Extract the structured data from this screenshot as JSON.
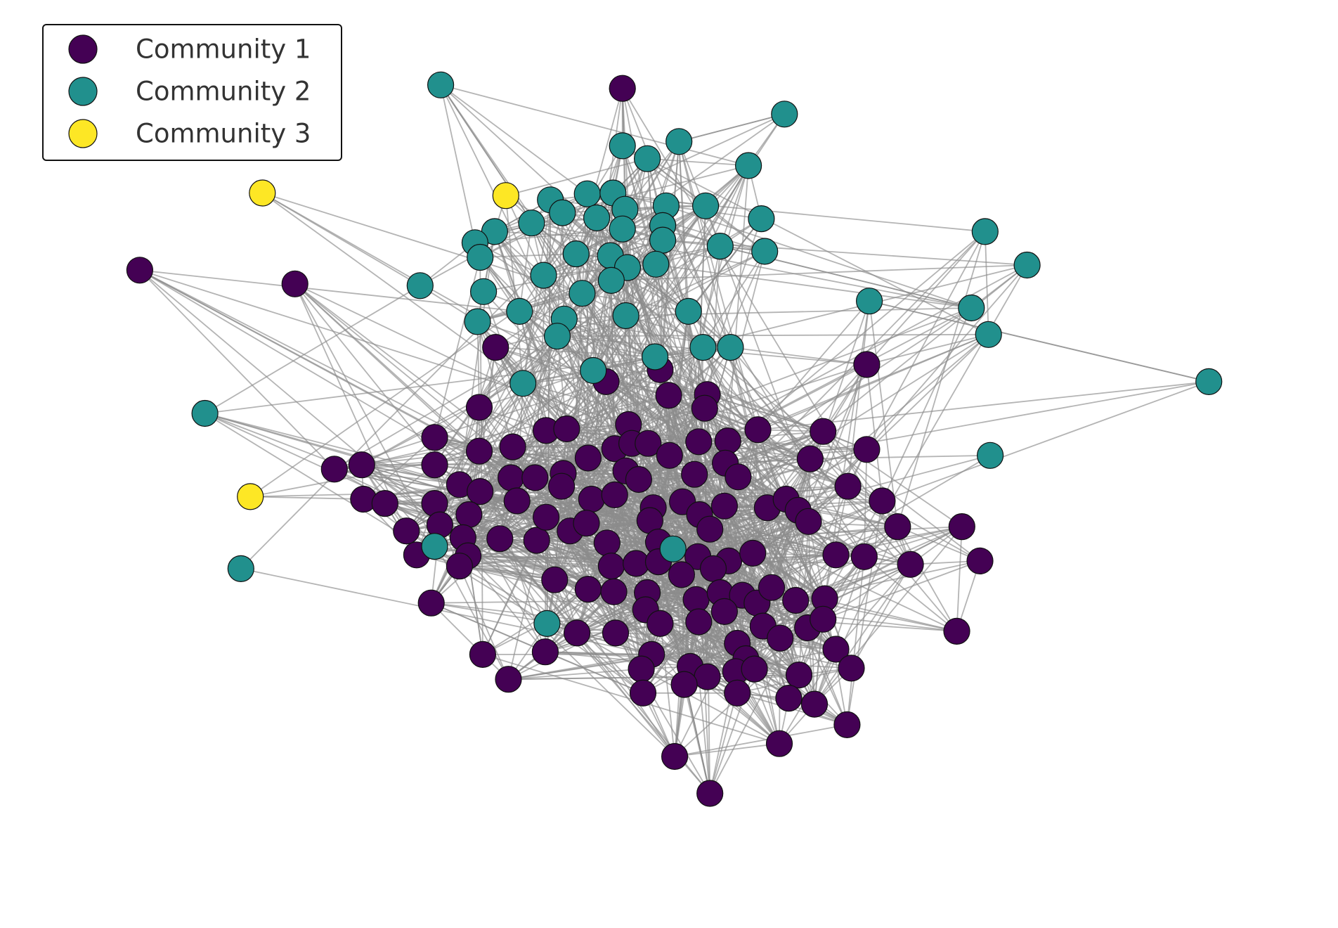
{
  "chart_data": {
    "type": "network",
    "legend": [
      {
        "label": "Community 1",
        "color": "#440154"
      },
      {
        "label": "Community 2",
        "color": "#21908d"
      },
      {
        "label": "Community 3",
        "color": "#fde725"
      }
    ],
    "legend_position": "upper left"
  }
}
